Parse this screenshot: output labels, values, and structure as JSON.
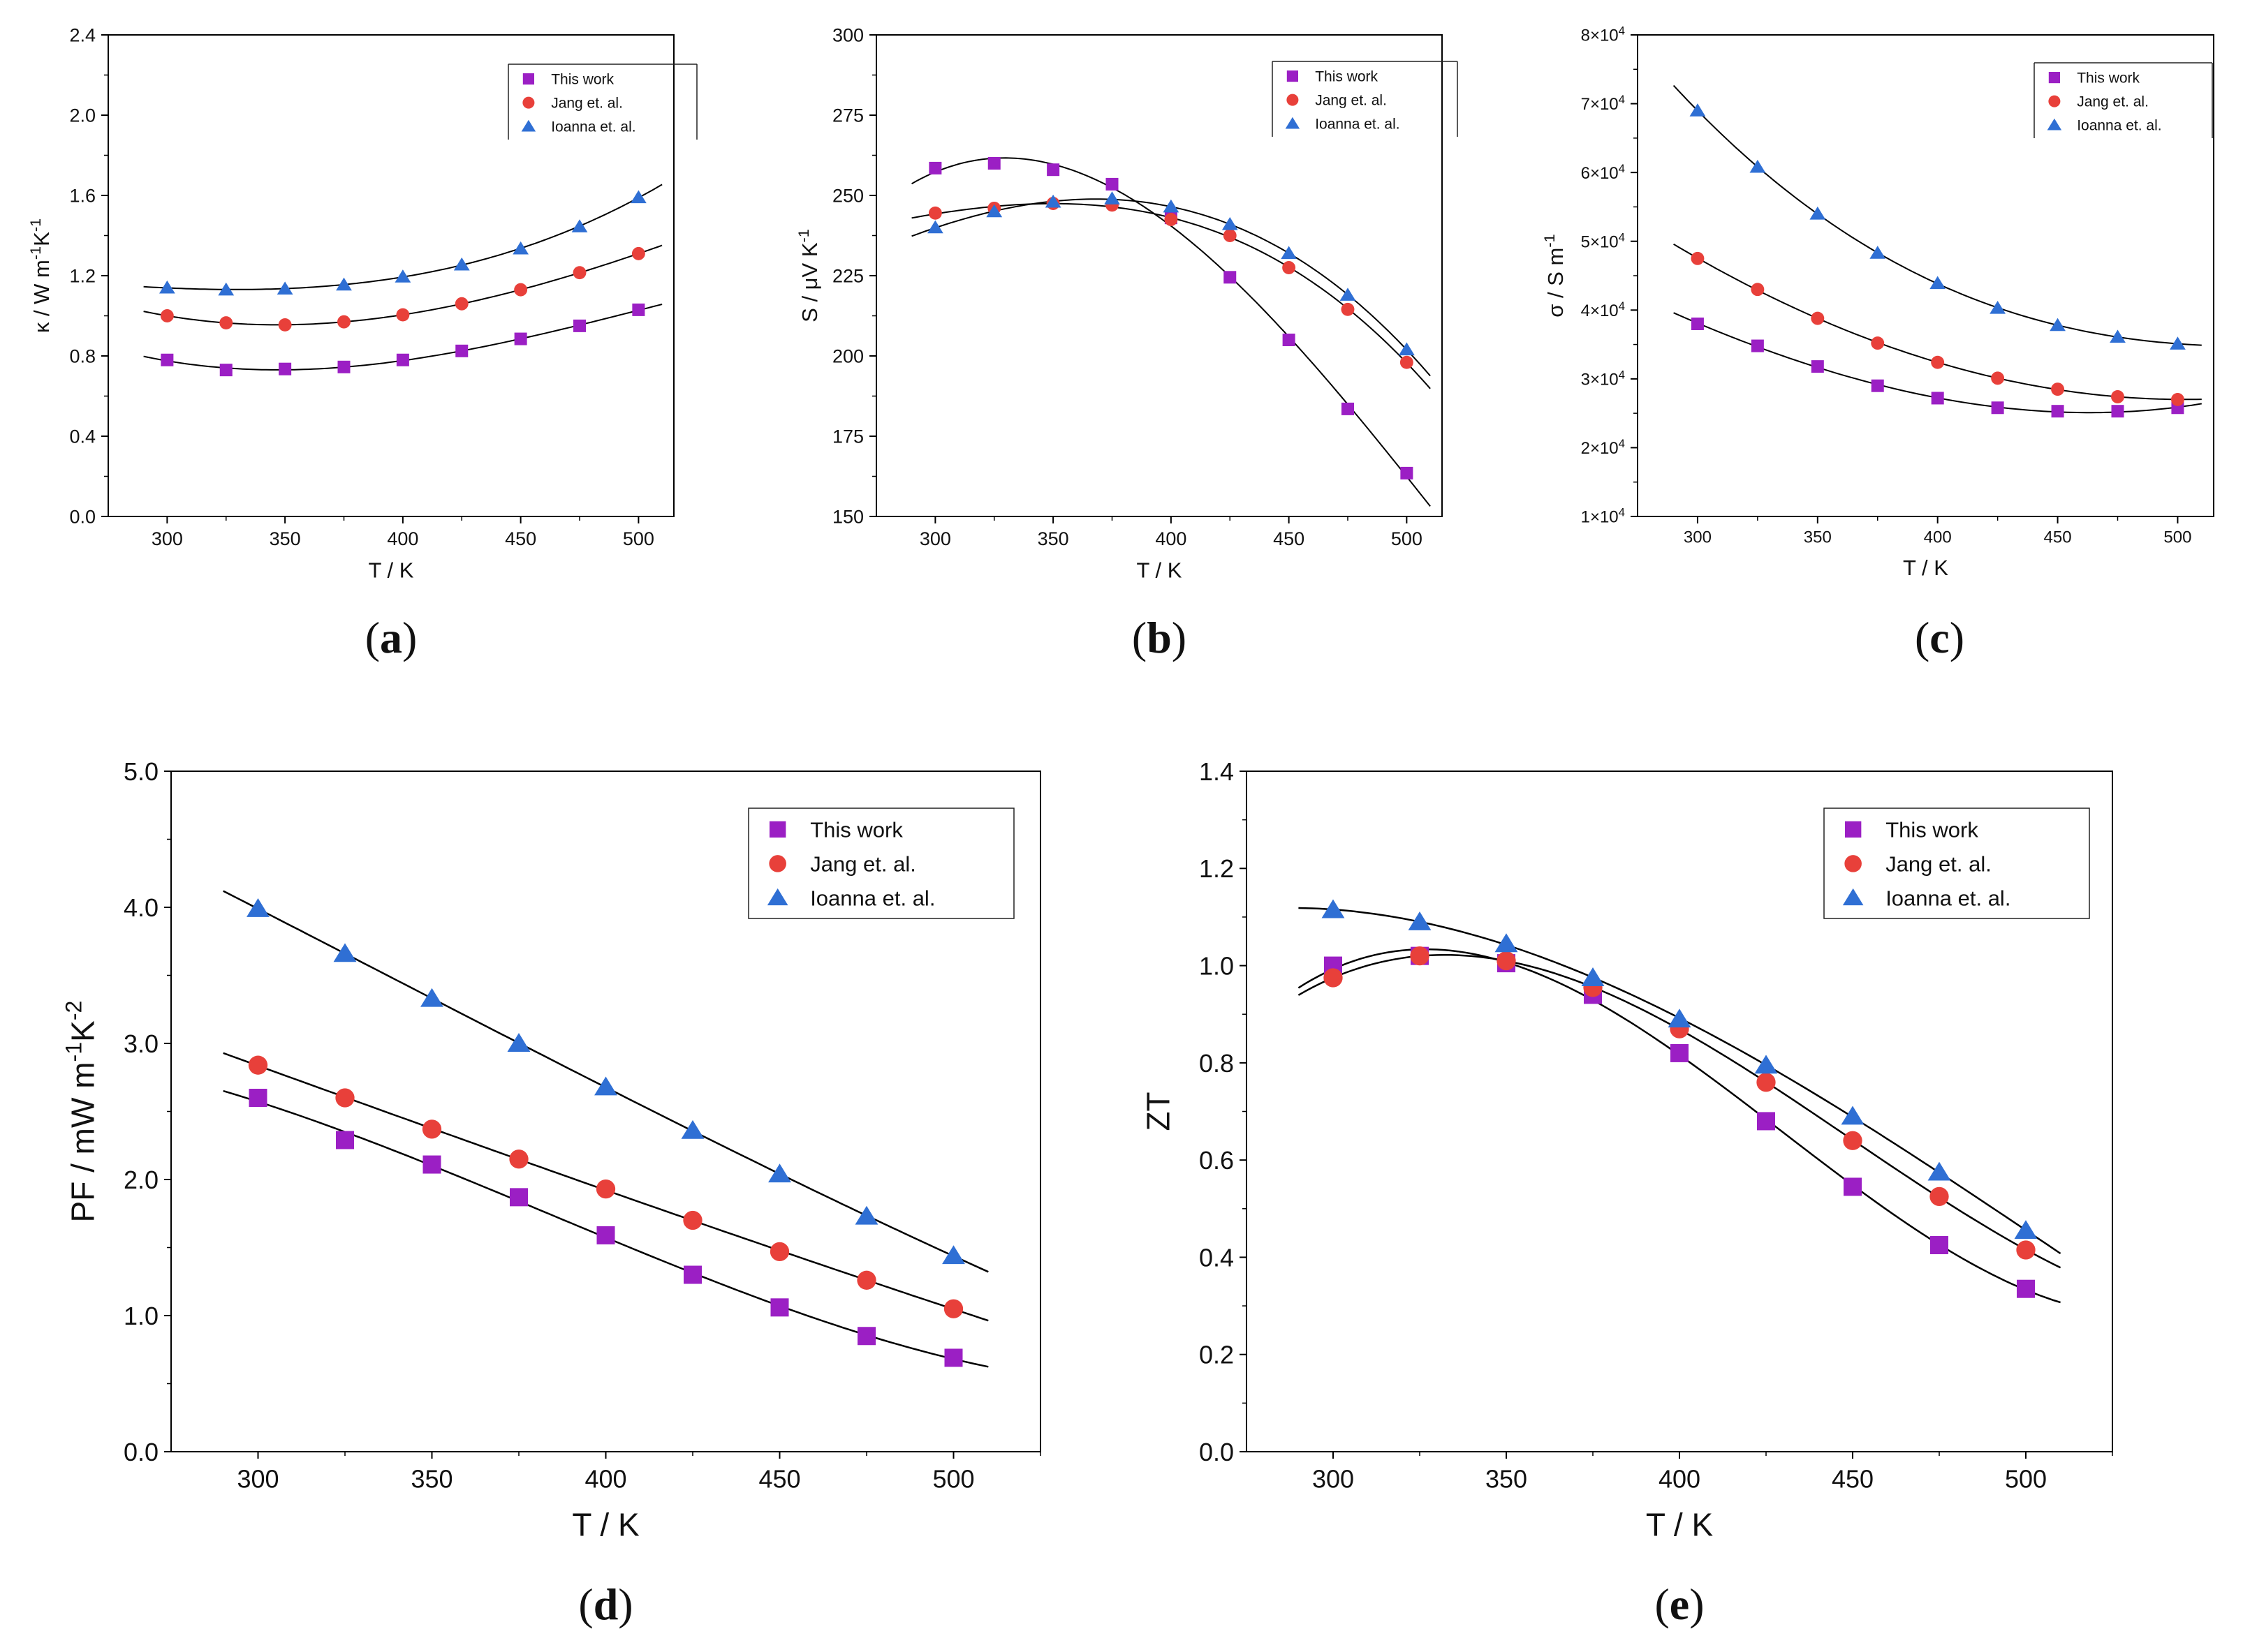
{
  "figure": {
    "captions": [
      "(a)",
      "(b)",
      "(c)",
      "(d)",
      "(e)"
    ]
  },
  "legend_markers": {
    "This work": "square",
    "Jang et. al.": "circle",
    "Ioanna et. al.": "triangle"
  },
  "colors": {
    "This work": "#9b1fc4",
    "Jang et. al.": "#e8403a",
    "Ioanna et. al.": "#2f6fd4",
    "fit_line": "#000000",
    "axis": "#000000"
  },
  "chart_data": [
    {
      "id": "a",
      "type": "scatter",
      "caption": "(a)",
      "xlabel": "T / K",
      "ylabel": "κ / W m-1K-1",
      "xlim": [
        275,
        515
      ],
      "ylim": [
        0,
        2.4
      ],
      "xticks": [
        300,
        350,
        400,
        450,
        500
      ],
      "xtick_labels": [
        "300",
        "350",
        "400",
        "450",
        "500"
      ],
      "yticks": [
        0,
        0.4,
        0.8,
        1.2,
        1.6,
        2.0,
        2.4
      ],
      "ytick_labels": [
        "0.0",
        "0.4",
        "0.8",
        "1.2",
        "1.6",
        "2.0",
        "2.4"
      ],
      "fit_range": [
        290,
        510
      ],
      "legend": "top-right",
      "x": [
        300,
        325,
        350,
        375,
        400,
        425,
        450,
        475,
        500
      ],
      "series": [
        {
          "name": "This work",
          "values": [
            0.78,
            0.73,
            0.735,
            0.745,
            0.78,
            0.825,
            0.885,
            0.95,
            1.03
          ]
        },
        {
          "name": "Jang et. al.",
          "values": [
            1.0,
            0.965,
            0.955,
            0.97,
            1.005,
            1.06,
            1.13,
            1.215,
            1.31
          ]
        },
        {
          "name": "Ioanna et. al.",
          "values": [
            1.14,
            1.13,
            1.135,
            1.155,
            1.195,
            1.255,
            1.335,
            1.445,
            1.59
          ]
        }
      ]
    },
    {
      "id": "b",
      "type": "scatter",
      "caption": "(b)",
      "xlabel": "T / K",
      "ylabel": "S / μV K-1",
      "xlim": [
        275,
        515
      ],
      "ylim": [
        150,
        300
      ],
      "xticks": [
        300,
        350,
        400,
        450,
        500
      ],
      "xtick_labels": [
        "300",
        "350",
        "400",
        "450",
        "500"
      ],
      "yticks": [
        150,
        175,
        200,
        225,
        250,
        275,
        300
      ],
      "ytick_labels": [
        "150",
        "175",
        "200",
        "225",
        "250",
        "275",
        "300"
      ],
      "fit_range": [
        290,
        510
      ],
      "legend": "top-right",
      "x": [
        300,
        325,
        350,
        375,
        400,
        425,
        450,
        475,
        500
      ],
      "series": [
        {
          "name": "This work",
          "values": [
            258.5,
            260,
            258,
            253.5,
            243,
            224.5,
            205,
            183.5,
            163.5
          ]
        },
        {
          "name": "Jang et. al.",
          "values": [
            244.5,
            246,
            247.5,
            247,
            242.5,
            237.5,
            227.5,
            214.5,
            198
          ]
        },
        {
          "name": "Ioanna et. al.",
          "values": [
            240,
            245,
            248,
            249,
            246.5,
            241,
            232,
            219,
            202
          ]
        }
      ]
    },
    {
      "id": "c",
      "type": "scatter",
      "caption": "(c)",
      "xlabel": "T / K",
      "ylabel": "σ / S m-1",
      "xlim": [
        275,
        515
      ],
      "ylim": [
        10000,
        80000
      ],
      "xticks": [
        300,
        350,
        400,
        450,
        500
      ],
      "xtick_labels": [
        "300",
        "350",
        "400",
        "450",
        "500"
      ],
      "yticks": [
        10000,
        20000,
        30000,
        40000,
        50000,
        60000,
        70000,
        80000
      ],
      "ytick_labels": [
        "1×104",
        "2×104",
        "3×104",
        "4×104",
        "5×104",
        "6×104",
        "7×104",
        "8×104"
      ],
      "fit_range": [
        290,
        510
      ],
      "legend": "top-right",
      "x": [
        300,
        325,
        350,
        375,
        400,
        425,
        450,
        475,
        500
      ],
      "series": [
        {
          "name": "This work",
          "values": [
            38000,
            34800,
            31800,
            29000,
            27200,
            25800,
            25300,
            25300,
            25800
          ]
        },
        {
          "name": "Jang et. al.",
          "values": [
            47500,
            43000,
            38800,
            35200,
            32400,
            30100,
            28500,
            27400,
            27000
          ]
        },
        {
          "name": "Ioanna et. al.",
          "values": [
            69000,
            60800,
            54000,
            48300,
            43900,
            40300,
            37800,
            36100,
            35100
          ]
        }
      ]
    },
    {
      "id": "d",
      "type": "scatter",
      "caption": "(d)",
      "xlabel": "T / K",
      "ylabel": "PF / mW m-1K-2",
      "xlim": [
        275,
        525
      ],
      "ylim": [
        0,
        5.0
      ],
      "xticks": [
        300,
        350,
        400,
        450,
        500
      ],
      "xtick_labels": [
        "300",
        "350",
        "400",
        "450",
        "500"
      ],
      "yticks": [
        0,
        1,
        2,
        3,
        4,
        5
      ],
      "ytick_labels": [
        "0.0",
        "1.0",
        "2.0",
        "3.0",
        "4.0",
        "5.0"
      ],
      "fit_range": [
        290,
        510
      ],
      "legend": "top-right",
      "x": [
        300,
        325,
        350,
        375,
        400,
        425,
        450,
        475,
        500
      ],
      "series": [
        {
          "name": "This work",
          "values": [
            2.6,
            2.29,
            2.11,
            1.87,
            1.59,
            1.3,
            1.06,
            0.85,
            0.69
          ]
        },
        {
          "name": "Jang et. al.",
          "values": [
            2.84,
            2.6,
            2.37,
            2.15,
            1.93,
            1.7,
            1.47,
            1.26,
            1.05
          ]
        },
        {
          "name": "Ioanna et. al.",
          "values": [
            3.99,
            3.66,
            3.33,
            3.0,
            2.68,
            2.36,
            2.04,
            1.73,
            1.44
          ]
        }
      ]
    },
    {
      "id": "e",
      "type": "scatter",
      "caption": "(e)",
      "xlabel": "T / K",
      "ylabel": "ZT",
      "xlim": [
        275,
        525
      ],
      "ylim": [
        0,
        1.4
      ],
      "xticks": [
        300,
        350,
        400,
        450,
        500
      ],
      "xtick_labels": [
        "300",
        "350",
        "400",
        "450",
        "500"
      ],
      "yticks": [
        0,
        0.2,
        0.4,
        0.6,
        0.8,
        1.0,
        1.2,
        1.4
      ],
      "ytick_labels": [
        "0.0",
        "0.2",
        "0.4",
        "0.6",
        "0.8",
        "1.0",
        "1.2",
        "1.4"
      ],
      "fit_range": [
        290,
        510
      ],
      "legend": "top-right",
      "x": [
        300,
        325,
        350,
        375,
        400,
        425,
        450,
        475,
        500
      ],
      "series": [
        {
          "name": "This work",
          "values": [
            1.0,
            1.02,
            1.005,
            0.94,
            0.82,
            0.68,
            0.545,
            0.425,
            0.335
          ]
        },
        {
          "name": "Jang et. al.",
          "values": [
            0.975,
            1.02,
            1.01,
            0.955,
            0.87,
            0.76,
            0.64,
            0.525,
            0.415
          ]
        },
        {
          "name": "Ioanna et. al.",
          "values": [
            1.115,
            1.09,
            1.045,
            0.975,
            0.89,
            0.795,
            0.69,
            0.575,
            0.455
          ]
        }
      ]
    }
  ]
}
